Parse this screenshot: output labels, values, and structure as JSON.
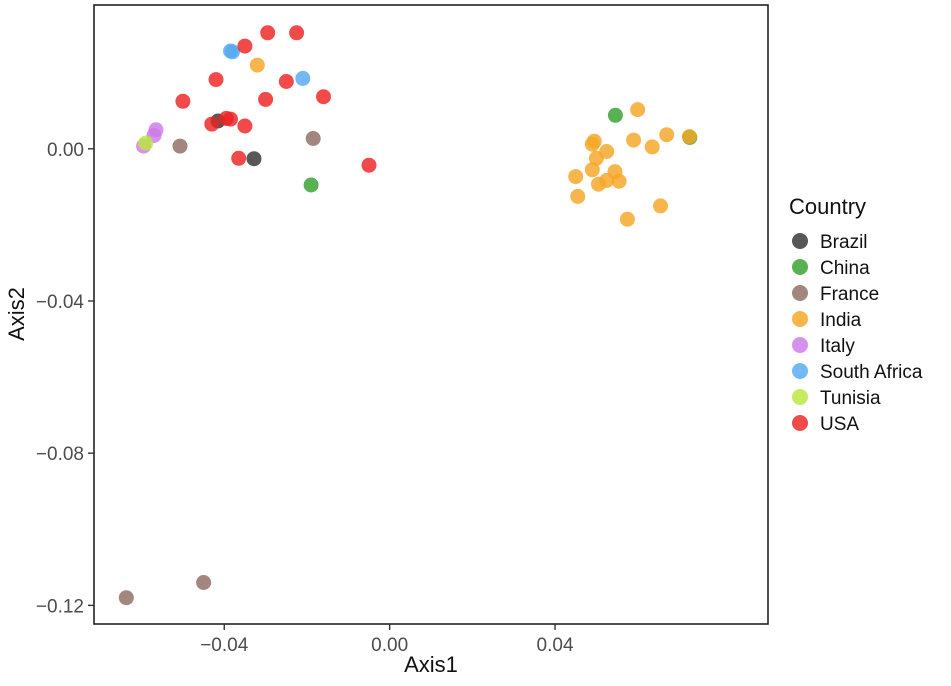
{
  "chart_data": {
    "type": "scatter",
    "xlabel": "Axis1",
    "ylabel": "Axis2",
    "xlim": [
      -0.0715,
      0.0915
    ],
    "ylim": [
      -0.1249,
      0.0378
    ],
    "x_ticks": [
      -0.04,
      0.0,
      0.04
    ],
    "x_tick_labels": [
      "−0.04",
      "0.00",
      "0.04"
    ],
    "y_ticks": [
      0.0,
      -0.04,
      -0.08,
      -0.12
    ],
    "y_tick_labels": [
      "0.00",
      "−0.04",
      "−0.08",
      "−0.12"
    ],
    "grid": false,
    "legend": {
      "title": "Country",
      "position": "right"
    },
    "series": [
      {
        "name": "Brazil",
        "color": "#333333",
        "points": [
          [
            -0.0415,
            0.0073
          ],
          [
            -0.0328,
            -0.0026
          ]
        ]
      },
      {
        "name": "China",
        "color": "#33A02C",
        "points": [
          [
            0.0546,
            0.0088
          ],
          [
            0.0726,
            0.003
          ],
          [
            -0.019,
            -0.0095
          ]
        ]
      },
      {
        "name": "France",
        "color": "#8C6D62",
        "points": [
          [
            -0.0185,
            0.0027
          ],
          [
            -0.0507,
            0.0007
          ],
          [
            -0.045,
            -0.114
          ],
          [
            -0.0637,
            -0.118
          ]
        ]
      },
      {
        "name": "India",
        "color": "#F5A623",
        "points": [
          [
            -0.032,
            0.022
          ],
          [
            0.06,
            0.0103
          ],
          [
            0.067,
            0.0037
          ],
          [
            0.0725,
            0.0032
          ],
          [
            0.059,
            0.0023
          ],
          [
            0.0495,
            0.002
          ],
          [
            0.049,
            0.0012
          ],
          [
            0.0635,
            0.0005
          ],
          [
            0.0525,
            -0.0007
          ],
          [
            0.05,
            -0.0025
          ],
          [
            0.045,
            -0.0073
          ],
          [
            0.0545,
            -0.006
          ],
          [
            0.049,
            -0.0055
          ],
          [
            0.0525,
            -0.0083
          ],
          [
            0.0555,
            -0.0085
          ],
          [
            0.0505,
            -0.0093
          ],
          [
            0.0455,
            -0.0125
          ],
          [
            0.0655,
            -0.015
          ],
          [
            0.0575,
            -0.0185
          ]
        ]
      },
      {
        "name": "Italy",
        "color": "#CC79E8",
        "points": [
          [
            -0.0565,
            0.005
          ],
          [
            -0.057,
            0.0035
          ],
          [
            -0.0595,
            0.0007
          ]
        ]
      },
      {
        "name": "South Africa",
        "color": "#56A8F0",
        "points": [
          [
            -0.0385,
            0.0257
          ],
          [
            -0.038,
            0.0255
          ],
          [
            -0.021,
            0.0185
          ]
        ]
      },
      {
        "name": "Tunisia",
        "color": "#B7E83A",
        "points": [
          [
            -0.059,
            0.0015
          ]
        ]
      },
      {
        "name": "USA",
        "color": "#EE2222",
        "points": [
          [
            -0.0295,
            0.0305
          ],
          [
            -0.0225,
            0.0305
          ],
          [
            -0.035,
            0.027
          ],
          [
            -0.042,
            0.0182
          ],
          [
            -0.025,
            0.0177
          ],
          [
            -0.016,
            0.0137
          ],
          [
            -0.05,
            0.0125
          ],
          [
            -0.03,
            0.013
          ],
          [
            -0.0395,
            0.008
          ],
          [
            -0.0385,
            0.0078
          ],
          [
            -0.043,
            0.0065
          ],
          [
            -0.035,
            0.006
          ],
          [
            -0.0365,
            -0.0025
          ],
          [
            -0.005,
            -0.0043
          ]
        ]
      }
    ]
  }
}
